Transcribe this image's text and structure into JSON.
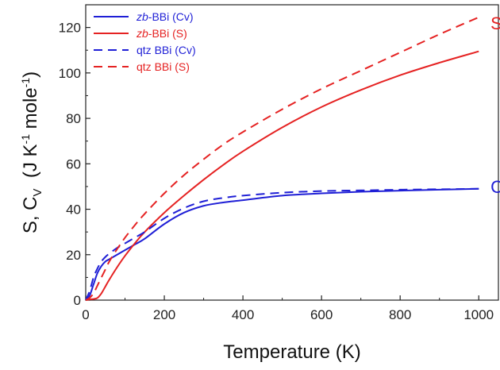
{
  "chart_data": {
    "type": "line",
    "xlabel": "Temperature (K)",
    "ylabel": {
      "part1": "S, C",
      "sub1": "V",
      "part2": "  (J K",
      "sup1": "-1",
      "part3": " mole",
      "sup2": "-1",
      "part4": ")"
    },
    "xlim": [
      0,
      1050
    ],
    "ylim": [
      0,
      130
    ],
    "xticks": [
      "0",
      "200",
      "400",
      "600",
      "800",
      "1000"
    ],
    "yticks": [
      "0",
      "20",
      "40",
      "60",
      "80",
      "100",
      "120"
    ],
    "x_tick_values": [
      0,
      200,
      400,
      600,
      800,
      1000
    ],
    "y_tick_values": [
      0,
      20,
      40,
      60,
      80,
      100,
      120
    ],
    "legend_position": "top-left",
    "grid": false,
    "series": [
      {
        "name_prefix": "zb",
        "name_rest": "-BBi (Cv)",
        "color": "#1f1fd6",
        "dash": "solid",
        "x": [
          0,
          10,
          20,
          30,
          40,
          50,
          60,
          80,
          100,
          125,
          150,
          200,
          250,
          300,
          350,
          400,
          500,
          600,
          700,
          800,
          900,
          1000
        ],
        "y": [
          0,
          2,
          7,
          12,
          15,
          17,
          18,
          20,
          22,
          24.5,
          27,
          33.5,
          38.5,
          41.5,
          43,
          44,
          46,
          47,
          47.7,
          48.2,
          48.6,
          49
        ]
      },
      {
        "name_prefix": "zb",
        "name_rest": "-BBi (S)",
        "color": "#e52222",
        "dash": "solid",
        "x": [
          0,
          10,
          20,
          30,
          40,
          50,
          60,
          80,
          100,
          125,
          150,
          200,
          250,
          300,
          350,
          400,
          500,
          600,
          700,
          800,
          900,
          1000
        ],
        "y": [
          0,
          0.3,
          0.5,
          1,
          3,
          6,
          9,
          14.5,
          19.5,
          25,
          30,
          38.5,
          46,
          53,
          59.5,
          65.5,
          76,
          85,
          92.5,
          99,
          104.5,
          109.5
        ]
      },
      {
        "name_prefix": "",
        "name_rest": "qtz BBi (Cv)",
        "color": "#1f1fd6",
        "dash": "dashed",
        "x": [
          0,
          10,
          20,
          30,
          40,
          50,
          60,
          80,
          100,
          125,
          150,
          200,
          250,
          300,
          350,
          400,
          500,
          600,
          700,
          800,
          900,
          1000
        ],
        "y": [
          0,
          4,
          10,
          14,
          17,
          19,
          20.5,
          23,
          25,
          27.5,
          30,
          36,
          40.5,
          43.5,
          45,
          46,
          47.3,
          48,
          48.3,
          48.6,
          48.8,
          49
        ]
      },
      {
        "name_prefix": "",
        "name_rest": "qtz BBi (S)",
        "color": "#e52222",
        "dash": "dashed",
        "x": [
          0,
          10,
          20,
          30,
          40,
          50,
          60,
          80,
          100,
          125,
          150,
          200,
          250,
          300,
          350,
          400,
          500,
          600,
          700,
          800,
          900,
          1000
        ],
        "y": [
          0,
          1,
          3,
          6.5,
          10,
          13.5,
          17,
          22.5,
          27.5,
          33,
          38,
          47,
          55,
          62,
          68.5,
          74,
          84,
          93,
          101,
          109,
          117,
          124.5
        ]
      }
    ],
    "annotations": [
      {
        "text": "S",
        "sub": "",
        "color": "#e52222",
        "x": 1030,
        "y": 122
      },
      {
        "text": "C",
        "sub": "V",
        "color": "#1f1fd6",
        "x": 1030,
        "y": 50
      }
    ]
  }
}
